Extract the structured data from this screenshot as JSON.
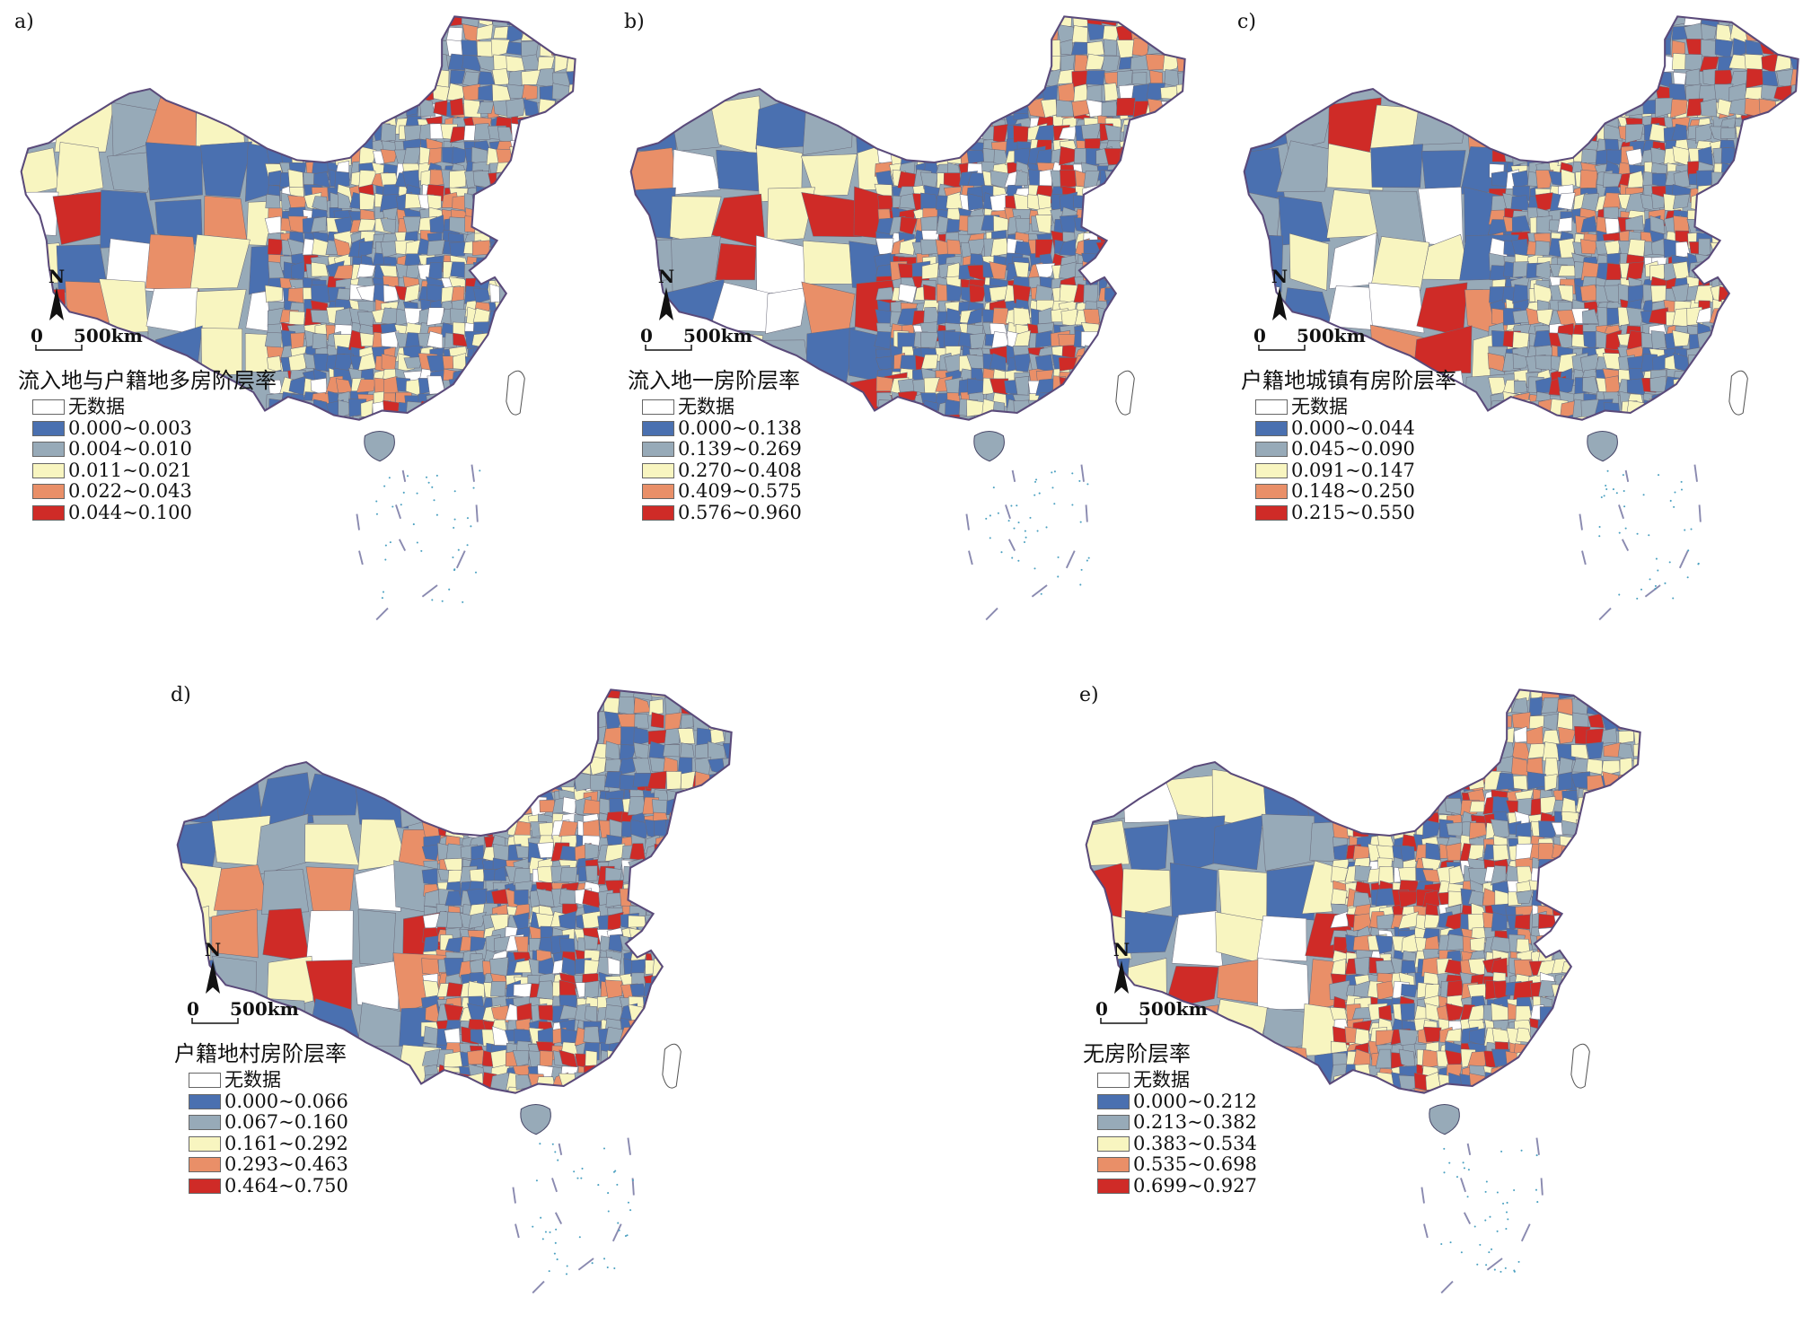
{
  "panels": [
    {
      "label": "a)",
      "title": "流入地与户籍地多房阶层率",
      "north": "N",
      "scale_zero": "0",
      "scale_text": "500km",
      "legend": [
        {
          "label": "无数据",
          "color": "#ffffff"
        },
        {
          "label": "0.000~0.003",
          "color": "#4a70b0"
        },
        {
          "label": "0.004~0.010",
          "color": "#97aab8"
        },
        {
          "label": "0.011~0.021",
          "color": "#f8f5c0"
        },
        {
          "label": "0.022~0.043",
          "color": "#e98f68"
        },
        {
          "label": "0.044~0.100",
          "color": "#cf2b27"
        }
      ]
    },
    {
      "label": "b)",
      "title": "流入地一房阶层率",
      "north": "N",
      "scale_zero": "0",
      "scale_text": "500km",
      "legend": [
        {
          "label": "无数据",
          "color": "#ffffff"
        },
        {
          "label": "0.000~0.138",
          "color": "#4a70b0"
        },
        {
          "label": "0.139~0.269",
          "color": "#97aab8"
        },
        {
          "label": "0.270~0.408",
          "color": "#f8f5c0"
        },
        {
          "label": "0.409~0.575",
          "color": "#e98f68"
        },
        {
          "label": "0.576~0.960",
          "color": "#cf2b27"
        }
      ]
    },
    {
      "label": "c)",
      "title": "户籍地城镇有房阶层率",
      "north": "N",
      "scale_zero": "0",
      "scale_text": "500km",
      "legend": [
        {
          "label": "无数据",
          "color": "#ffffff"
        },
        {
          "label": "0.000~0.044",
          "color": "#4a70b0"
        },
        {
          "label": "0.045~0.090",
          "color": "#97aab8"
        },
        {
          "label": "0.091~0.147",
          "color": "#f8f5c0"
        },
        {
          "label": "0.148~0.250",
          "color": "#e98f68"
        },
        {
          "label": "0.215~0.550",
          "color": "#cf2b27"
        }
      ]
    },
    {
      "label": "d)",
      "title": "户籍地村房阶层率",
      "north": "N",
      "scale_zero": "0",
      "scale_text": "500km",
      "legend": [
        {
          "label": "无数据",
          "color": "#ffffff"
        },
        {
          "label": "0.000~0.066",
          "color": "#4a70b0"
        },
        {
          "label": "0.067~0.160",
          "color": "#97aab8"
        },
        {
          "label": "0.161~0.292",
          "color": "#f8f5c0"
        },
        {
          "label": "0.293~0.463",
          "color": "#e98f68"
        },
        {
          "label": "0.464~0.750",
          "color": "#cf2b27"
        }
      ]
    },
    {
      "label": "e)",
      "title": "无房阶层率",
      "north": "N",
      "scale_zero": "0",
      "scale_text": "500km",
      "legend": [
        {
          "label": "无数据",
          "color": "#ffffff"
        },
        {
          "label": "0.000~0.212",
          "color": "#4a70b0"
        },
        {
          "label": "0.213~0.382",
          "color": "#97aab8"
        },
        {
          "label": "0.383~0.534",
          "color": "#f8f5c0"
        },
        {
          "label": "0.535~0.698",
          "color": "#e98f68"
        },
        {
          "label": "0.699~0.927",
          "color": "#cf2b27"
        }
      ]
    }
  ],
  "colors": {
    "border": "#5a4a7a",
    "coast": "#9aa8d8",
    "nodata": "#ffffff"
  }
}
